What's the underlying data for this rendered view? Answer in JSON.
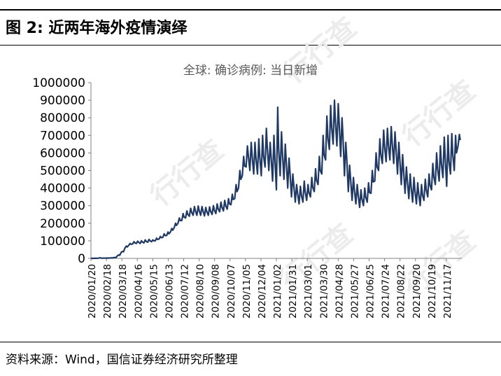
{
  "figure": {
    "title": "图 2:  近两年海外疫情演绎",
    "source": "资料来源：Wind，国信证券经济研究所整理",
    "watermark": "行行查"
  },
  "colors": {
    "series": "#1f3864",
    "axis": "#808080",
    "text": "#000000"
  },
  "chart_data": {
    "type": "line",
    "title": "全球: 确诊病例: 当日新增",
    "xlabel": "",
    "ylabel": "",
    "ylim": [
      0,
      1000000
    ],
    "yticks": [
      0,
      100000,
      200000,
      300000,
      400000,
      500000,
      600000,
      700000,
      800000,
      900000,
      1000000
    ],
    "ytick_labels": [
      "0",
      "100000",
      "200000",
      "300000",
      "400000",
      "500000",
      "600000",
      "700000",
      "800000",
      "900000",
      "1000000"
    ],
    "x_start": "2020/01/20",
    "x_end": "2021/12/06",
    "xtick_labels": [
      "2020/01/20",
      "2020/02/18",
      "2020/03/18",
      "2020/04/16",
      "2020/05/15",
      "2020/06/13",
      "2020/07/12",
      "2020/08/10",
      "2020/09/08",
      "2020/10/07",
      "2020/11/05",
      "2020/12/04",
      "2021/01/02",
      "2021/01/31",
      "2021/03/01",
      "2021/03/30",
      "2021/04/28",
      "2021/05/27",
      "2021/06/25",
      "2021/07/24",
      "2021/08/22",
      "2021/09/20",
      "2021/10/19",
      "2021/11/17"
    ],
    "grid": false,
    "legend": "none",
    "series": [
      {
        "name": "全球: 确诊病例: 当日新增",
        "day_step": 7,
        "weekly_high_low": "weekly peak days are followed by weekday troughs (daily oscillation)",
        "x_day_offsets": [
          0,
          7,
          14,
          21,
          28,
          35,
          42,
          49,
          56,
          63,
          70,
          77,
          84,
          91,
          98,
          105,
          112,
          119,
          126,
          133,
          140,
          147,
          154,
          161,
          168,
          175,
          182,
          189,
          196,
          203,
          210,
          217,
          224,
          231,
          238,
          245,
          252,
          259,
          266,
          273,
          280,
          287,
          294,
          301,
          308,
          315,
          322,
          329,
          336,
          343,
          350,
          357,
          364,
          371,
          378,
          385,
          392,
          399,
          406,
          413,
          420,
          427,
          434,
          441,
          448,
          455,
          462,
          469,
          476,
          483,
          490,
          497,
          504,
          511,
          518,
          525,
          532,
          539,
          546,
          553,
          560,
          567,
          574,
          581,
          588,
          595,
          602,
          609,
          616,
          623,
          630,
          637,
          644,
          651,
          658,
          665,
          672,
          679
        ],
        "peaks": [
          0,
          500,
          3000,
          1500,
          2000,
          3000,
          5000,
          20000,
          40000,
          70000,
          85000,
          95000,
          98000,
          100000,
          105000,
          108000,
          105000,
          115000,
          125000,
          140000,
          150000,
          170000,
          200000,
          230000,
          255000,
          270000,
          285000,
          295000,
          298000,
          295000,
          290000,
          293000,
          300000,
          310000,
          320000,
          330000,
          340000,
          365000,
          420000,
          500000,
          580000,
          640000,
          660000,
          660000,
          680000,
          700000,
          740000,
          660000,
          700000,
          860000,
          720000,
          650000,
          570000,
          480000,
          420000,
          410000,
          440000,
          420000,
          460000,
          510000,
          580000,
          700000,
          810000,
          870000,
          900000,
          880000,
          800000,
          660000,
          530000,
          460000,
          420000,
          390000,
          400000,
          430000,
          500000,
          600000,
          680000,
          730000,
          740000,
          750000,
          720000,
          660000,
          590000,
          520000,
          480000,
          460000,
          430000,
          420000,
          450000,
          480000,
          540000,
          600000,
          640000,
          690000,
          700000,
          710000,
          700000,
          705000
        ],
        "troughs": [
          0,
          300,
          1000,
          800,
          1500,
          2000,
          4000,
          15000,
          35000,
          60000,
          75000,
          82000,
          85000,
          85000,
          88000,
          92000,
          95000,
          100000,
          110000,
          120000,
          130000,
          150000,
          175000,
          200000,
          215000,
          230000,
          240000,
          245000,
          245000,
          245000,
          242000,
          245000,
          250000,
          255000,
          265000,
          270000,
          280000,
          305000,
          340000,
          400000,
          470000,
          520000,
          500000,
          480000,
          480000,
          470000,
          520000,
          500000,
          440000,
          390000,
          470000,
          450000,
          400000,
          350000,
          320000,
          310000,
          320000,
          330000,
          350000,
          380000,
          420000,
          480000,
          560000,
          620000,
          650000,
          640000,
          580000,
          470000,
          380000,
          330000,
          310000,
          290000,
          300000,
          320000,
          370000,
          440000,
          500000,
          540000,
          550000,
          560000,
          540000,
          480000,
          420000,
          370000,
          340000,
          320000,
          310000,
          300000,
          330000,
          350000,
          390000,
          420000,
          440000,
          460000,
          410000,
          480000,
          500000,
          640000
        ]
      }
    ]
  }
}
